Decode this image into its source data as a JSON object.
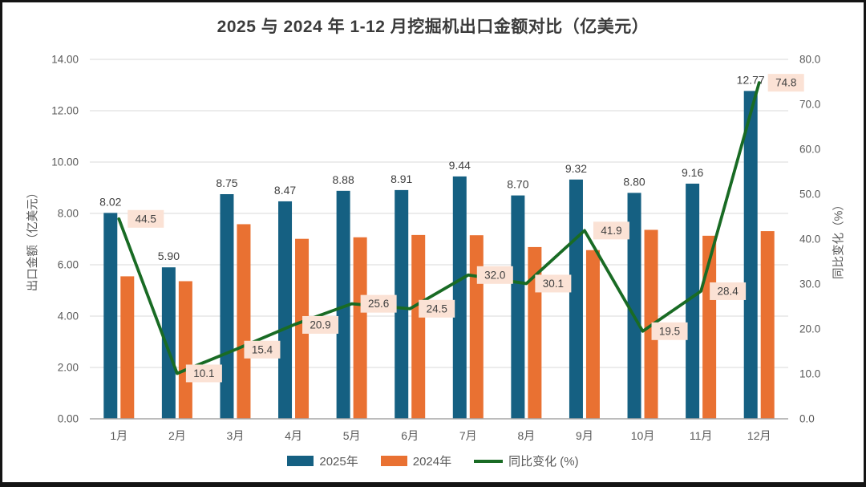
{
  "chart_data": {
    "type": "combo-bar-line",
    "title": "2025 与 2024 年 1-12 月挖掘机出口金额对比（亿美元）",
    "categories": [
      "1月",
      "2月",
      "3月",
      "4月",
      "5月",
      "6月",
      "7月",
      "8月",
      "9月",
      "10月",
      "11月",
      "12月"
    ],
    "series": [
      {
        "name": "2025年",
        "type": "bar",
        "axis": "left",
        "color": "#156082",
        "values": [
          8.02,
          5.9,
          8.75,
          8.47,
          8.88,
          8.91,
          9.44,
          8.7,
          9.32,
          8.8,
          9.16,
          12.77
        ],
        "labels": [
          "8.02",
          "5.90",
          "8.75",
          "8.47",
          "8.88",
          "8.91",
          "9.44",
          "8.70",
          "9.32",
          "8.80",
          "9.16",
          "12.77"
        ]
      },
      {
        "name": "2024年",
        "type": "bar",
        "axis": "left",
        "color": "#E97132",
        "values": [
          5.55,
          5.36,
          7.58,
          7.01,
          7.07,
          7.16,
          7.15,
          6.69,
          6.57,
          7.36,
          7.13,
          7.31
        ],
        "labels": []
      },
      {
        "name": "同比变化 (%)",
        "type": "line",
        "axis": "right",
        "color": "#196B24",
        "values": [
          44.5,
          10.1,
          15.4,
          20.9,
          25.6,
          24.5,
          32.0,
          30.1,
          41.9,
          19.5,
          28.4,
          74.8
        ],
        "labels": [
          "44.5",
          "10.1",
          "15.4",
          "20.9",
          "25.6",
          "24.5",
          "32.0",
          "30.1",
          "41.9",
          "19.5",
          "28.4",
          "74.8"
        ],
        "label_bg": "#FBE2D5"
      }
    ],
    "left_axis": {
      "title": "出口金额（亿美元）",
      "min": 0,
      "max": 14,
      "step": 2,
      "ticks": [
        "0.00",
        "2.00",
        "4.00",
        "6.00",
        "8.00",
        "10.00",
        "12.00",
        "14.00"
      ]
    },
    "right_axis": {
      "title": "同比变化（%）",
      "min": 0,
      "max": 80,
      "step": 10,
      "ticks": [
        "0.0",
        "10.0",
        "20.0",
        "30.0",
        "40.0",
        "50.0",
        "60.0",
        "70.0",
        "80.0"
      ]
    },
    "grid": "horizontal",
    "gridline_color": "#D9D9D9",
    "baseline_color": "#A6A6A6",
    "legend_position": "bottom"
  }
}
